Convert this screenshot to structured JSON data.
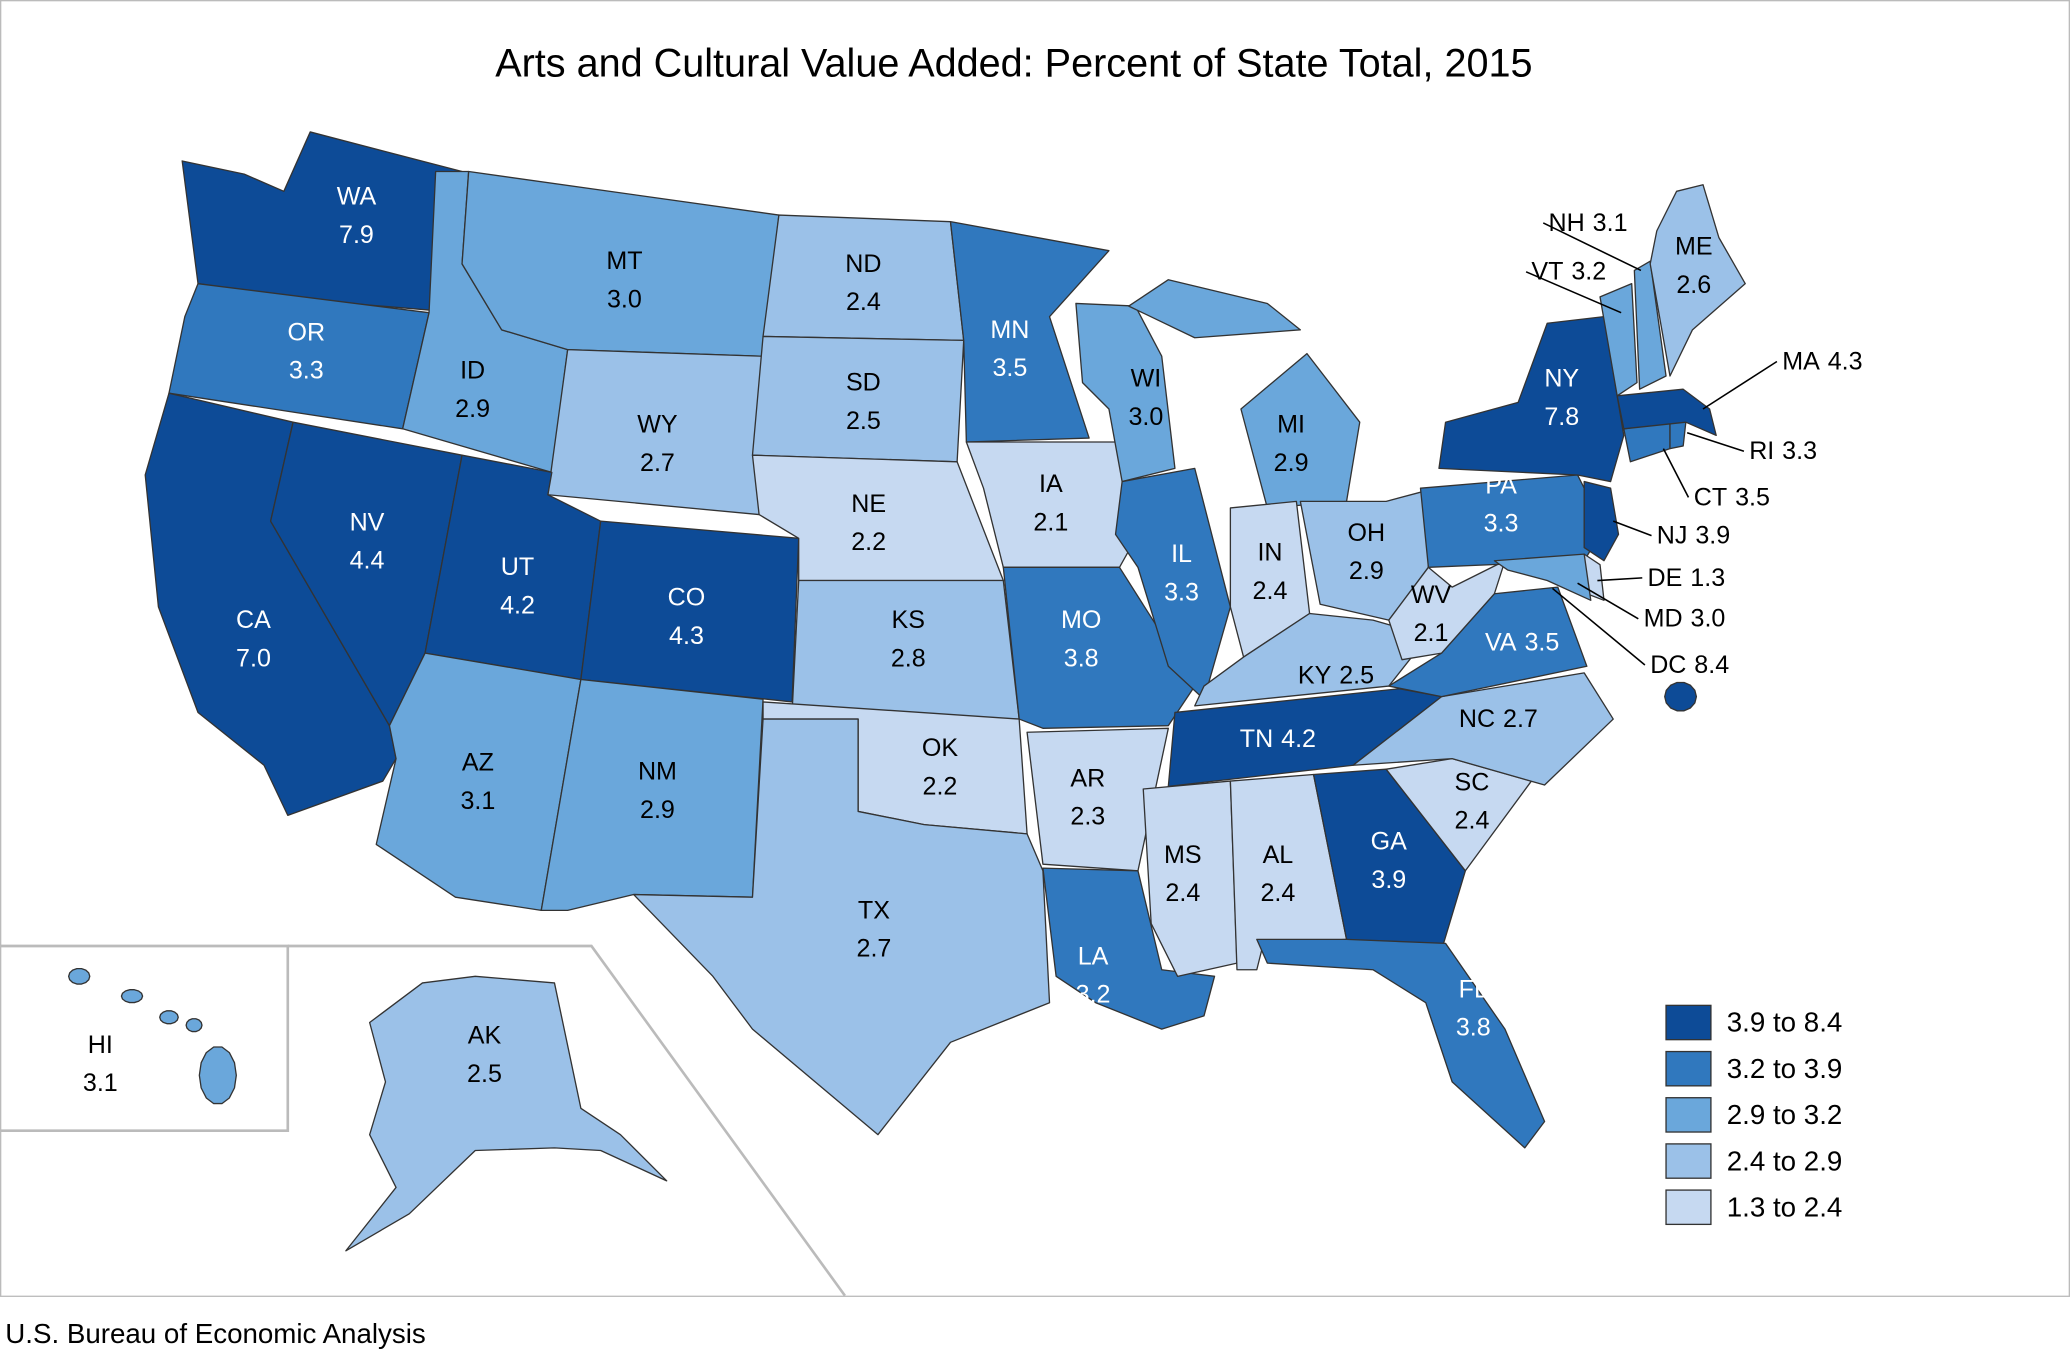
{
  "chart_data": {
    "type": "choropleth",
    "title": "Arts and Cultural Value Added: Percent of State Total, 2015",
    "categories": [
      "WA",
      "OR",
      "CA",
      "NV",
      "ID",
      "MT",
      "WY",
      "UT",
      "CO",
      "AZ",
      "NM",
      "ND",
      "SD",
      "NE",
      "KS",
      "OK",
      "TX",
      "MN",
      "IA",
      "MO",
      "AR",
      "LA",
      "WI",
      "IL",
      "MI",
      "IN",
      "OH",
      "KY",
      "TN",
      "MS",
      "AL",
      "GA",
      "FL",
      "SC",
      "NC",
      "VA",
      "WV",
      "PA",
      "NY",
      "NJ",
      "DE",
      "MD",
      "DC",
      "CT",
      "RI",
      "MA",
      "VT",
      "NH",
      "ME",
      "HI",
      "AK"
    ],
    "values": [
      7.9,
      3.3,
      7,
      4.4,
      2.9,
      3,
      2.7,
      4.2,
      4.3,
      3.1,
      2.9,
      2.4,
      2.5,
      2.2,
      2.8,
      2.2,
      2.7,
      3.5,
      2.1,
      3.8,
      2.3,
      3.2,
      3,
      3.3,
      2.9,
      2.4,
      2.9,
      2.5,
      4.2,
      2.4,
      2.4,
      3.9,
      3.8,
      2.4,
      2.7,
      3.5,
      2.1,
      3.3,
      7.8,
      3.9,
      1.3,
      3,
      8.4,
      3.5,
      3.3,
      4.3,
      3.2,
      3.1,
      2.6,
      3.1,
      2.5
    ],
    "value_labels": [
      "7.9",
      "3.3",
      "7.0",
      "4.4",
      "2.9",
      "3.0",
      "2.7",
      "4.2",
      "4.3",
      "3.1",
      "2.9",
      "2.4",
      "2.5",
      "2.2",
      "2.8",
      "2.2",
      "2.7",
      "3.5",
      "2.1",
      "3.8",
      "2.3",
      "3.2",
      "3.0",
      "3.3",
      "2.9",
      "2.4",
      "2.9",
      "2.5",
      "4.2",
      "2.4",
      "2.4",
      "3.9",
      "3.8",
      "2.4",
      "2.7",
      "3.5",
      "2.1",
      "3.3",
      "7.8",
      "3.9",
      "1.3",
      "3.0",
      "8.4",
      "3.5",
      "3.3",
      "4.3",
      "3.2",
      "3.1",
      "2.6",
      "3.1",
      "2.5"
    ],
    "colors": [
      "#0d4b97",
      "#3078be",
      "#0d4b97",
      "#0d4b97",
      "#6aa7db",
      "#6aa7db",
      "#9bc1e8",
      "#0d4b97",
      "#0d4b97",
      "#6aa7db",
      "#6aa7db",
      "#9bc1e8",
      "#9bc1e8",
      "#c6d9f1",
      "#9bc1e8",
      "#c6d9f1",
      "#9bc1e8",
      "#3078be",
      "#c6d9f1",
      "#3078be",
      "#c6d9f1",
      "#3078be",
      "#6aa7db",
      "#3078be",
      "#6aa7db",
      "#c6d9f1",
      "#9bc1e8",
      "#9bc1e8",
      "#0d4b97",
      "#c6d9f1",
      "#c6d9f1",
      "#0d4b97",
      "#3078be",
      "#c6d9f1",
      "#9bc1e8",
      "#3078be",
      "#c6d9f1",
      "#3078be",
      "#0d4b97",
      "#0d4b97",
      "#c6d9f1",
      "#6aa7db",
      "#0d4b97",
      "#3078be",
      "#3078be",
      "#0d4b97",
      "#6aa7db",
      "#6aa7db",
      "#9bc1e8",
      "#6aa7db",
      "#9bc1e8"
    ],
    "legend": [
      {
        "label": "3.9 to 8.4",
        "color": "#0d4b97"
      },
      {
        "label": "3.2 to 3.9",
        "color": "#3078be"
      },
      {
        "label": "2.9 to 3.2",
        "color": "#6aa7db"
      },
      {
        "label": "2.4 to 2.9",
        "color": "#9bc1e8"
      },
      {
        "label": "1.3 to 2.4",
        "color": "#c6d9f1"
      }
    ],
    "legend_position": "bottom-right",
    "source": "U.S. Bureau of Economic Analysis"
  }
}
